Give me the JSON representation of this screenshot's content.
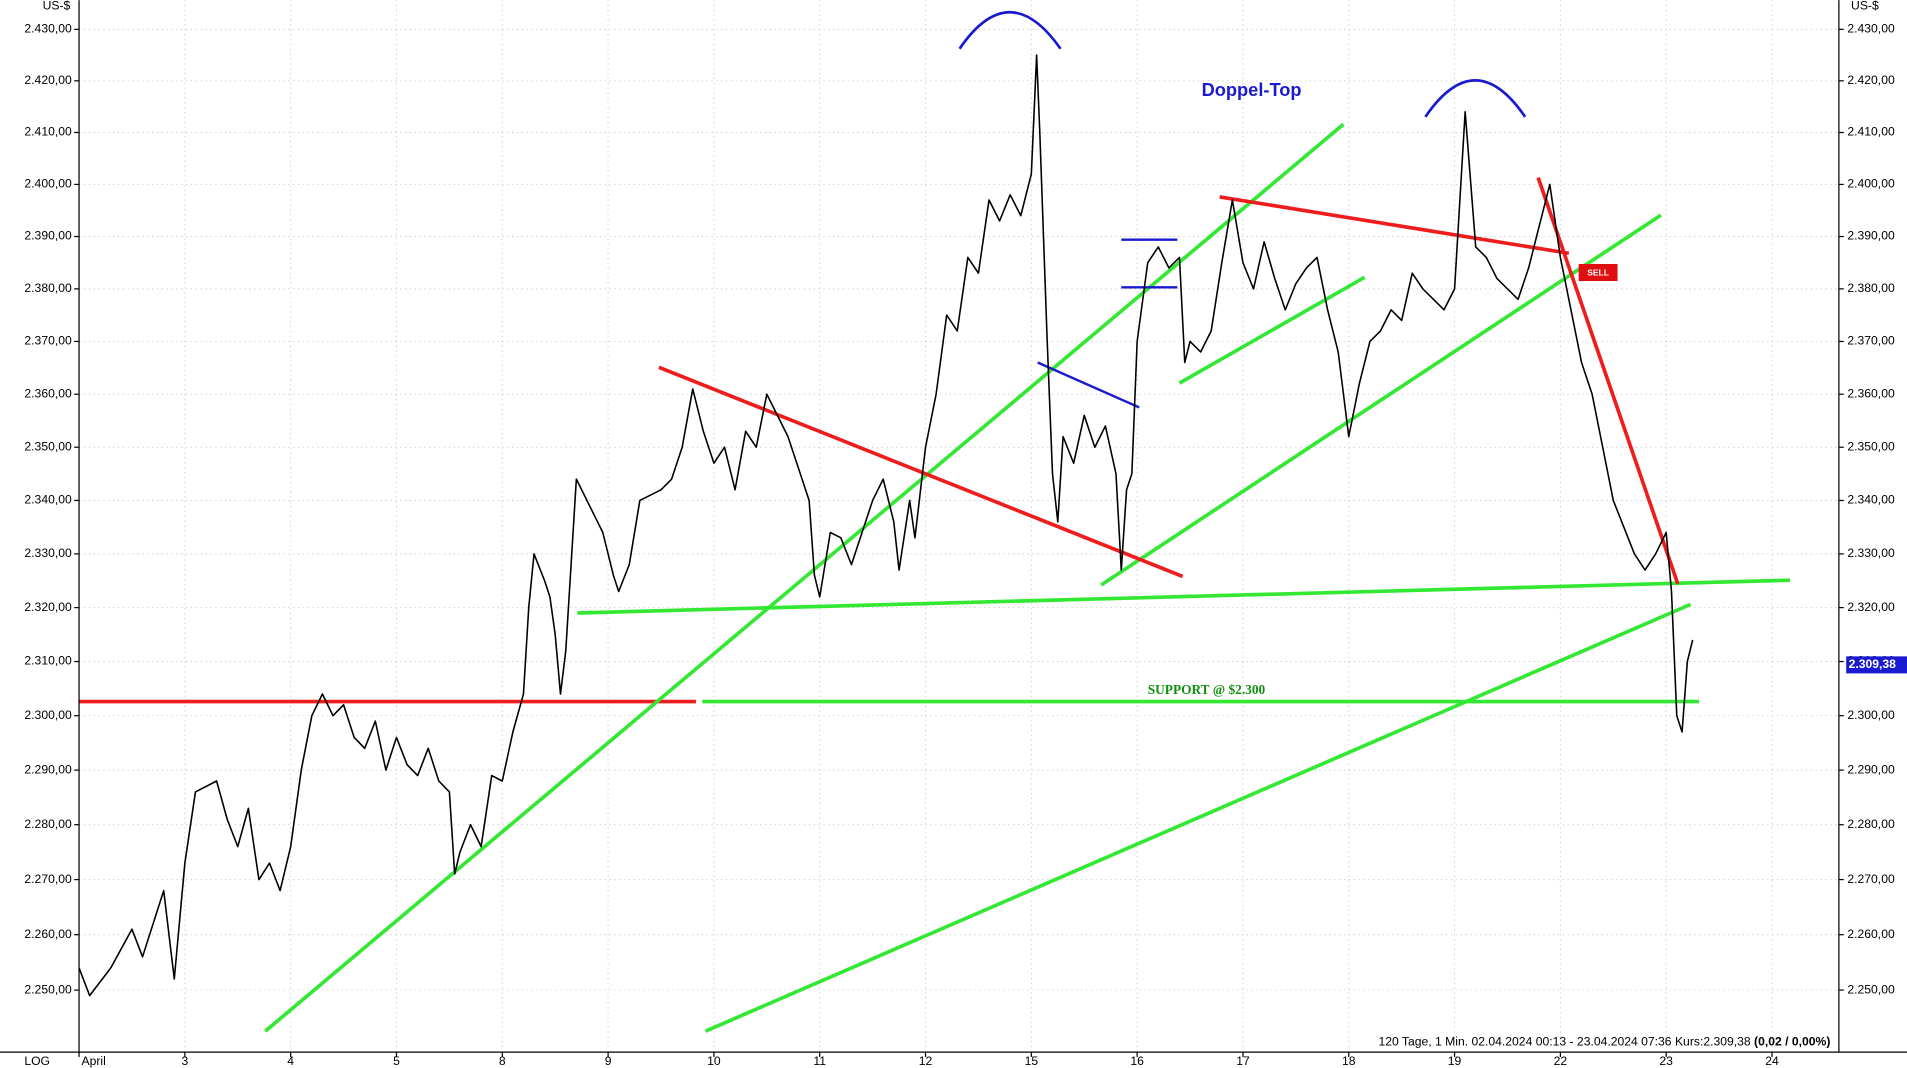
{
  "chart_data": {
    "type": "line",
    "y_unit": "US-$",
    "scale_label": "LOG",
    "log_scale": true,
    "grid": true,
    "color": "#000000",
    "x": [
      0,
      0.1,
      0.3,
      0.5,
      0.6,
      0.8,
      0.9,
      1.0,
      1.1,
      1.3,
      1.4,
      1.5,
      1.6,
      1.7,
      1.8,
      1.9,
      2.0,
      2.1,
      2.2,
      2.3,
      2.4,
      2.5,
      2.6,
      2.7,
      2.8,
      2.9,
      3.0,
      3.1,
      3.2,
      3.3,
      3.4,
      3.5,
      3.55,
      3.6,
      3.7,
      3.8,
      3.9,
      4.0,
      4.1,
      4.2,
      4.25,
      4.3,
      4.4,
      4.45,
      4.5,
      4.55,
      4.6,
      4.7,
      4.8,
      4.9,
      4.95,
      5.0,
      5.05,
      5.1,
      5.2,
      5.3,
      5.5,
      5.6,
      5.7,
      5.8,
      5.9,
      6.0,
      6.1,
      6.2,
      6.3,
      6.4,
      6.5,
      6.6,
      6.7,
      6.8,
      6.9,
      6.95,
      7.0,
      7.1,
      7.2,
      7.3,
      7.5,
      7.6,
      7.7,
      7.75,
      7.85,
      7.9,
      8.0,
      8.1,
      8.2,
      8.3,
      8.4,
      8.5,
      8.6,
      8.7,
      8.8,
      8.9,
      9.0,
      9.05,
      9.08,
      9.15,
      9.2,
      9.25,
      9.3,
      9.4,
      9.5,
      9.6,
      9.7,
      9.8,
      9.85,
      9.9,
      9.95,
      10.0,
      10.1,
      10.2,
      10.3,
      10.4,
      10.45,
      10.5,
      10.6,
      10.7,
      10.8,
      10.9,
      11.0,
      11.1,
      11.2,
      11.3,
      11.4,
      11.5,
      11.6,
      11.7,
      11.8,
      11.9,
      12.0,
      12.1,
      12.2,
      12.3,
      12.4,
      12.5,
      12.6,
      12.7,
      12.8,
      12.9,
      13.0,
      13.1,
      13.2,
      13.3,
      13.4,
      13.5,
      13.6,
      13.7,
      13.8,
      13.9,
      14.0,
      14.1,
      14.2,
      14.3,
      14.4,
      14.5,
      14.6,
      14.7,
      14.8,
      14.9,
      15.0,
      15.05,
      15.1,
      15.15,
      15.2,
      15.25
    ],
    "values": [
      2254,
      2249,
      2254,
      2261,
      2256,
      2268,
      2252,
      2273,
      2286,
      2288,
      2281,
      2276,
      2283,
      2270,
      2273,
      2268,
      2276,
      2290,
      2300,
      2304,
      2300,
      2302,
      2296,
      2294,
      2299,
      2290,
      2296,
      2291,
      2289,
      2294,
      2288,
      2286,
      2271,
      2275,
      2280,
      2276,
      2289,
      2288,
      2297,
      2304,
      2320,
      2330,
      2325,
      2322,
      2315,
      2304,
      2312,
      2344,
      2340,
      2336,
      2334,
      2330,
      2326,
      2323,
      2328,
      2340,
      2342,
      2344,
      2350,
      2361,
      2353,
      2347,
      2350,
      2342,
      2353,
      2350,
      2360,
      2356,
      2352,
      2346,
      2340,
      2326,
      2322,
      2334,
      2333,
      2328,
      2340,
      2344,
      2336,
      2327,
      2340,
      2333,
      2350,
      2360,
      2375,
      2372,
      2386,
      2383,
      2397,
      2393,
      2398,
      2394,
      2402,
      2425,
      2410,
      2370,
      2345,
      2336,
      2352,
      2347,
      2356,
      2350,
      2354,
      2345,
      2327,
      2342,
      2345,
      2370,
      2385,
      2388,
      2384,
      2386,
      2366,
      2370,
      2368,
      2372,
      2385,
      2397,
      2385,
      2380,
      2389,
      2382,
      2376,
      2381,
      2384,
      2386,
      2376,
      2368,
      2352,
      2362,
      2370,
      2372,
      2376,
      2374,
      2383,
      2380,
      2378,
      2376,
      2380,
      2414,
      2388,
      2386,
      2382,
      2380,
      2378,
      2384,
      2392,
      2400,
      2386,
      2376,
      2366,
      2360,
      2350,
      2340,
      2335,
      2330,
      2327,
      2330,
      2334,
      2323,
      2300,
      2297,
      2310,
      2314
    ],
    "xlim": [
      0,
      16.6
    ],
    "ylim": [
      2239.5,
      2435.7
    ],
    "xticks": [
      {
        "value": 0,
        "label": "April"
      },
      {
        "value": 1,
        "label": "3"
      },
      {
        "value": 2,
        "label": "4"
      },
      {
        "value": 3,
        "label": "5"
      },
      {
        "value": 4,
        "label": "8"
      },
      {
        "value": 5,
        "label": "9"
      },
      {
        "value": 6,
        "label": "10"
      },
      {
        "value": 7,
        "label": "11"
      },
      {
        "value": 8,
        "label": "12"
      },
      {
        "value": 9,
        "label": "15"
      },
      {
        "value": 10,
        "label": "16"
      },
      {
        "value": 11,
        "label": "17"
      },
      {
        "value": 12,
        "label": "18"
      },
      {
        "value": 13,
        "label": "19"
      },
      {
        "value": 14,
        "label": "22"
      },
      {
        "value": 15,
        "label": "23"
      },
      {
        "value": 16,
        "label": "24"
      }
    ],
    "yticks": [
      {
        "value": 2250,
        "label": "2.250,00"
      },
      {
        "value": 2260,
        "label": "2.260,00"
      },
      {
        "value": 2270,
        "label": "2.270,00"
      },
      {
        "value": 2280,
        "label": "2.280,00"
      },
      {
        "value": 2290,
        "label": "2.290,00"
      },
      {
        "value": 2300,
        "label": "2.300,00"
      },
      {
        "value": 2310,
        "label": "2.310,00"
      },
      {
        "value": 2320,
        "label": "2.320,00"
      },
      {
        "value": 2330,
        "label": "2.330,00"
      },
      {
        "value": 2340,
        "label": "2.340,00"
      },
      {
        "value": 2350,
        "label": "2.350,00"
      },
      {
        "value": 2360,
        "label": "2.360,00"
      },
      {
        "value": 2370,
        "label": "2.370,00"
      },
      {
        "value": 2380,
        "label": "2.380,00"
      },
      {
        "value": 2390,
        "label": "2.390,00"
      },
      {
        "value": 2400,
        "label": "2.400,00"
      },
      {
        "value": 2410,
        "label": "2.410,00"
      },
      {
        "value": 2420,
        "label": "2.420,00"
      },
      {
        "value": 2430,
        "label": "2.430,00"
      }
    ],
    "last_price": {
      "value": 2309.38,
      "label": "2.309,38"
    },
    "trend_lines": [
      {
        "x": [
          0,
          5.83
        ],
        "y": [
          2302.6,
          2302.6
        ],
        "color": "#ee1c1c"
      },
      {
        "x": [
          5.89,
          15.31
        ],
        "y": [
          2302.6,
          2302.6
        ],
        "color": "#33e833"
      },
      {
        "x": [
          1.76,
          11.95
        ],
        "y": [
          2242.6,
          2411.6
        ],
        "color": "#33e833"
      },
      {
        "x": [
          5.92,
          15.23
        ],
        "y": [
          2242.6,
          2320.6
        ],
        "color": "#33e833"
      },
      {
        "x": [
          4.71,
          16.17
        ],
        "y": [
          2319.0,
          2325.1
        ],
        "color": "#33e833"
      },
      {
        "x": [
          9.66,
          14.95
        ],
        "y": [
          2324.2,
          2394.1
        ],
        "color": "#33e833"
      },
      {
        "x": [
          10.4,
          12.15
        ],
        "y": [
          2362.1,
          2382.2
        ],
        "color": "#33e833"
      },
      {
        "x": [
          5.48,
          10.43
        ],
        "y": [
          2365.1,
          2325.8
        ],
        "color": "#ee1c1c"
      },
      {
        "x": [
          10.78,
          14.08
        ],
        "y": [
          2397.6,
          2386.8
        ],
        "color": "#ee1c1c"
      },
      {
        "x": [
          13.79,
          15.11
        ],
        "y": [
          2401.3,
          2324.4
        ],
        "color": "#ee1c1c"
      },
      {
        "x": [
          9.06,
          10.02
        ],
        "y": [
          2366.0,
          2357.5
        ],
        "color": "#1a1ad0"
      },
      {
        "x": [
          9.85,
          10.38
        ],
        "y": [
          2389.4,
          2389.4
        ],
        "color": "#1a1ad0"
      },
      {
        "x": [
          9.85,
          10.38
        ],
        "y": [
          2380.3,
          2380.3
        ],
        "color": "#1a1ad0"
      }
    ],
    "annotations": {
      "double_top": "Doppel-Top",
      "support": "SUPPORT @ $2.300",
      "sell": "SELL"
    },
    "footer": "120 Tage, 1 Min. 02.04.2024 00:13 - 23.04.2024 07:36 Kurs:2.309,38 ",
    "footer_change": "(0,02 / 0,00%)"
  }
}
